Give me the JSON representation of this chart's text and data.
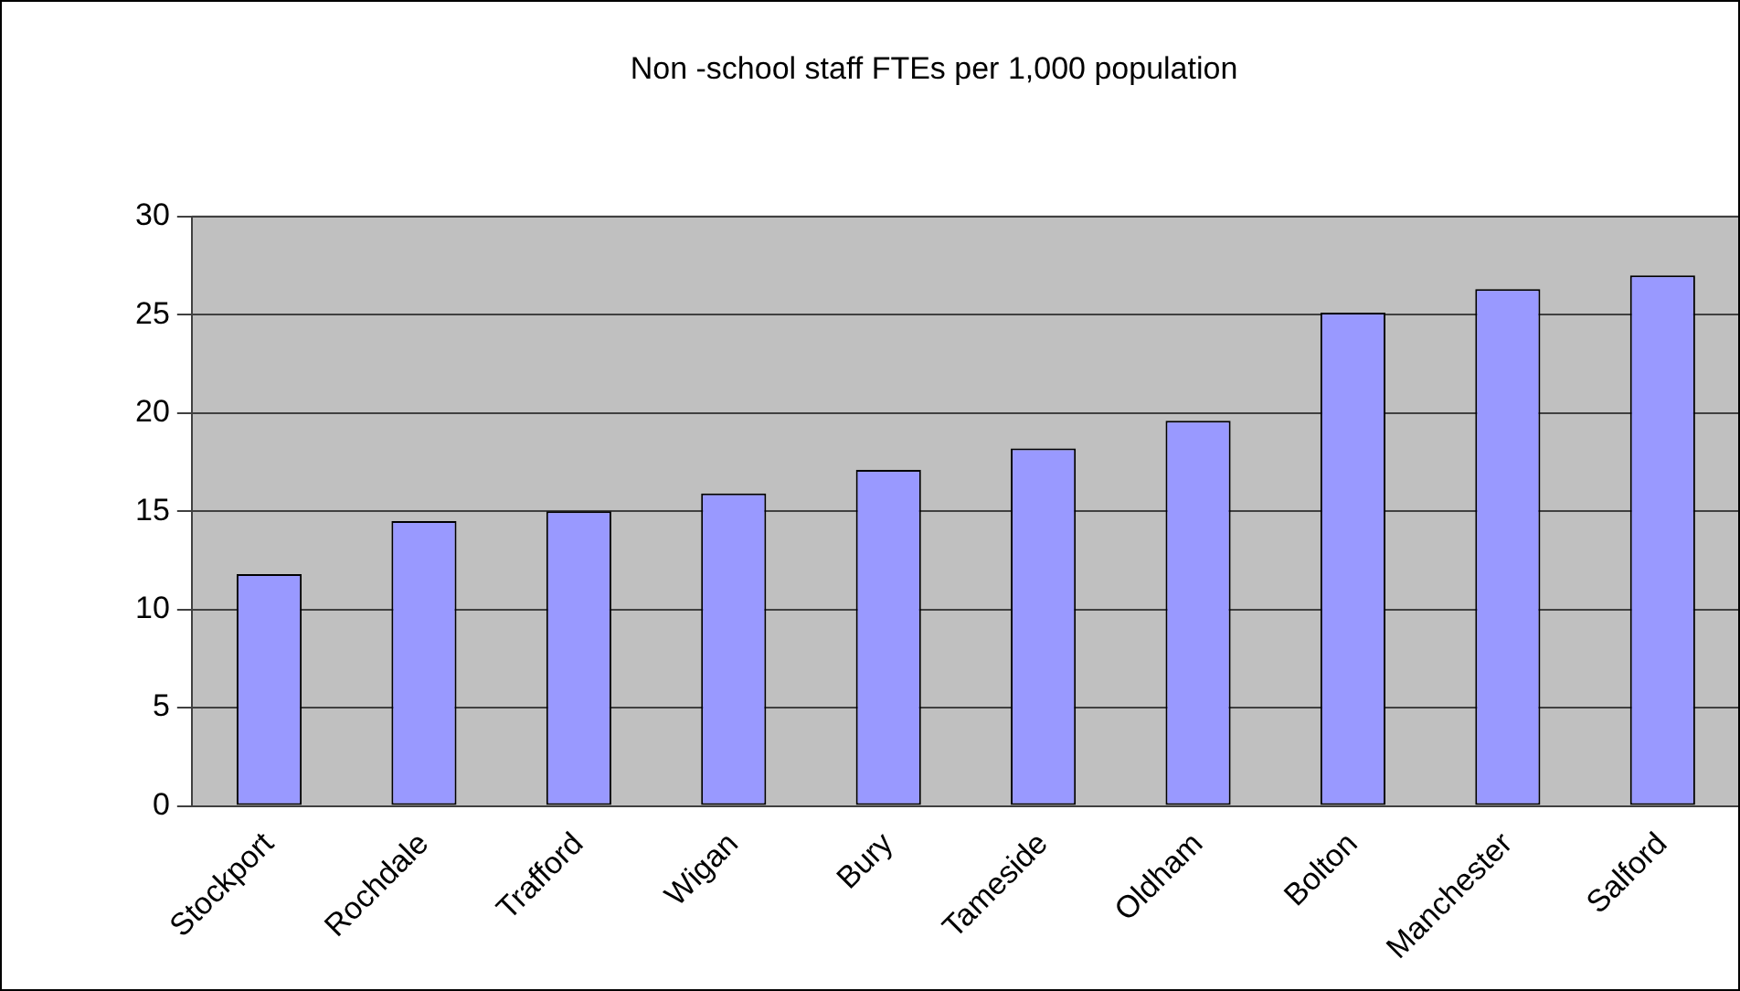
{
  "chart_data": {
    "type": "bar",
    "title": "Non -school staff FTEs per 1,000 population",
    "categories": [
      "Stockport",
      "Rochdale",
      "Trafford",
      "Wigan",
      "Bury",
      "Tameside",
      "Oldham",
      "Bolton",
      "Manchester",
      "Salford"
    ],
    "values": [
      11.8,
      14.5,
      15.0,
      15.9,
      17.1,
      18.2,
      19.6,
      25.1,
      26.3,
      27.0
    ],
    "color": "#9999ff",
    "ylim": [
      0,
      30
    ],
    "yticks": [
      0,
      5,
      10,
      15,
      20,
      25,
      30
    ],
    "grid": "y"
  }
}
